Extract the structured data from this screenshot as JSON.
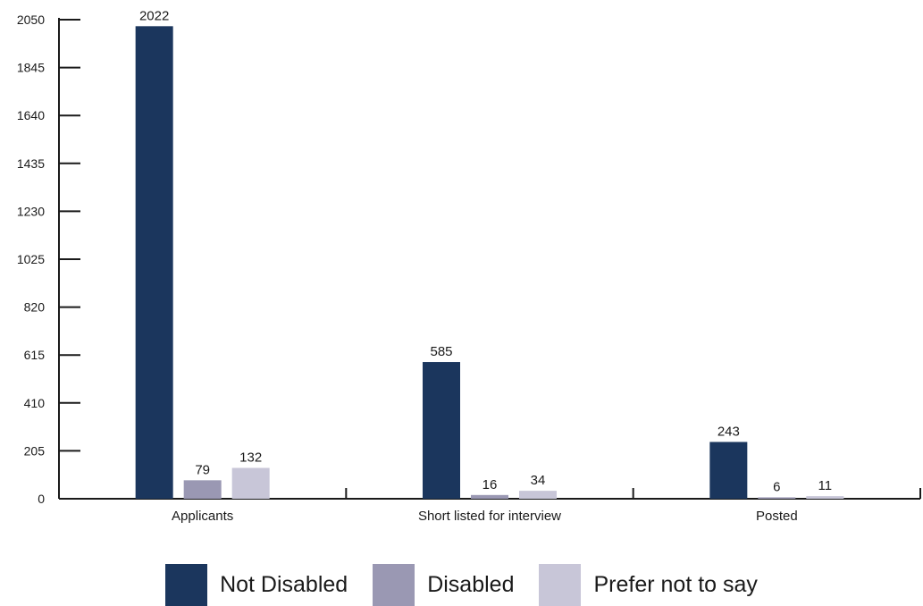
{
  "chart_data": {
    "type": "bar",
    "categories": [
      "Applicants",
      "Short listed for interview",
      "Posted"
    ],
    "series": [
      {
        "name": "Not Disabled",
        "color": "#1b365d",
        "values": [
          2022,
          585,
          243
        ]
      },
      {
        "name": "Disabled",
        "color": "#9a98b3",
        "values": [
          79,
          16,
          6
        ]
      },
      {
        "name": "Prefer not to say",
        "color": "#c8c6d8",
        "values": [
          132,
          34,
          11
        ]
      }
    ],
    "y_ticks": [
      0,
      205,
      410,
      615,
      820,
      1025,
      1230,
      1435,
      1640,
      1845,
      2050
    ],
    "ylim": [
      0,
      2050
    ],
    "grid": false,
    "legend_position": "bottom"
  }
}
